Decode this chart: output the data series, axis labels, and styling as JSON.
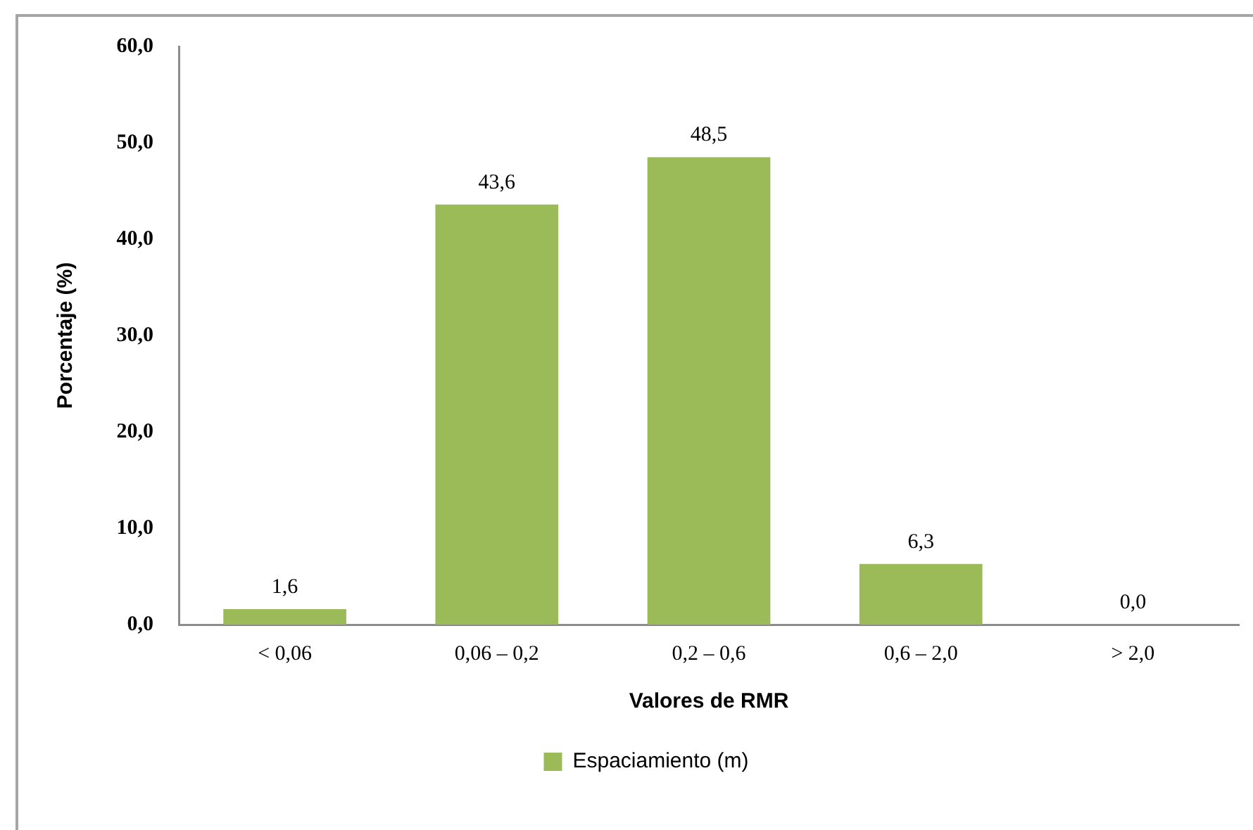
{
  "chart_data": {
    "type": "bar",
    "xlabel": "Valores de RMR",
    "ylabel": "Porcentaje (%)",
    "categories": [
      "< 0,06",
      "0,06 – 0,2",
      "0,2 – 0,6",
      "0,6 – 2,0",
      "> 2,0"
    ],
    "series": [
      {
        "name": "Espaciamiento (m)",
        "color": "#9bbb59",
        "values": [
          1.6,
          43.6,
          48.5,
          6.3,
          0.0
        ],
        "value_labels": [
          "1,6",
          "43,6",
          "48,5",
          "6,3",
          "0,0"
        ]
      }
    ],
    "ylim": [
      0,
      60
    ],
    "yticks": [
      {
        "value": 0,
        "label": "0,0"
      },
      {
        "value": 10,
        "label": "10,0"
      },
      {
        "value": 20,
        "label": "20,0"
      },
      {
        "value": 30,
        "label": "30,0"
      },
      {
        "value": 40,
        "label": "40,0"
      },
      {
        "value": 50,
        "label": "50,0"
      },
      {
        "value": 60,
        "label": "60,0"
      }
    ],
    "grid": false,
    "legend": "bottom"
  }
}
